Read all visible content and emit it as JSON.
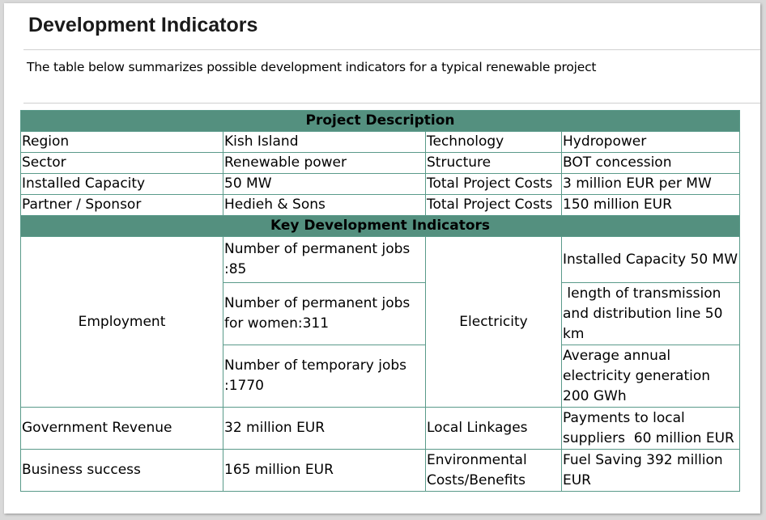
{
  "title": "Development Indicators",
  "subtitle": "The table below summarizes possible development indicators for a typical renewable project",
  "table": {
    "section1_header": "Project Description",
    "rows": [
      [
        "Region",
        "Kish Island",
        "Technology",
        "Hydropower"
      ],
      [
        "Sector",
        "Renewable power",
        "Structure",
        "BOT concession"
      ],
      [
        "Installed Capacity",
        "50 MW",
        "Total Project Costs",
        "3 million EUR per MW"
      ],
      [
        "Partner / Sponsor",
        "Hedieh & Sons",
        "Total Project Costs",
        "150 million EUR"
      ]
    ],
    "section2_header": "Key Development Indicators",
    "employment_label": "Employment",
    "employment_items": [
      "Number of permanent jobs :85",
      "Number of permanent jobs for women:311",
      "Number of temporary jobs :1770"
    ],
    "electricity_label": "Electricity",
    "electricity_items": [
      "Installed Capacity 50 MW",
      " length of transmission and distribution line 50 km",
      "Average annual electricity generation 200 GWh"
    ],
    "bottom_rows": [
      [
        "Government Revenue",
        "32 million EUR",
        "Local Linkages",
        "Payments to local suppliers  60 million EUR"
      ],
      [
        "Business success",
        "165 million EUR",
        "Environmental Costs/Benefits",
        "Fuel Saving 392 million EUR"
      ]
    ]
  }
}
